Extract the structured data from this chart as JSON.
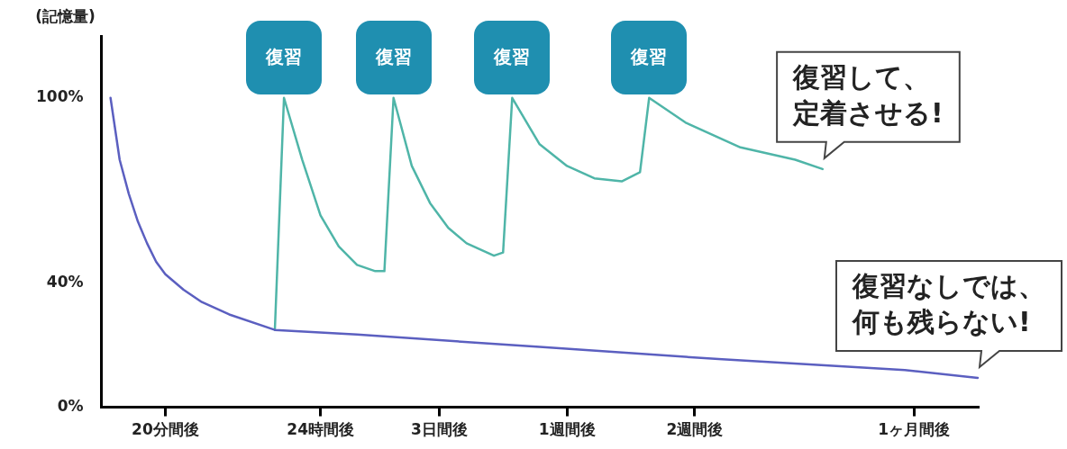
{
  "chart_data": {
    "type": "line",
    "ylabel": "(記憶量)",
    "ylim": [
      0,
      120
    ],
    "categories": [
      null,
      null,
      null,
      null,
      null,
      null,
      null,
      "20分間後",
      null,
      null,
      null,
      null,
      null,
      null,
      null,
      null,
      null,
      null,
      null,
      null,
      null,
      null,
      null,
      null,
      "24時間後",
      null,
      null,
      null,
      null,
      null,
      null,
      null,
      null,
      null,
      null,
      null,
      null,
      "3日間後",
      null,
      null,
      null,
      null,
      null,
      null,
      null,
      null,
      null,
      null,
      null,
      null,
      null,
      "1週間後",
      null,
      null,
      null,
      null,
      null,
      null,
      null,
      null,
      null,
      null,
      null,
      null,
      null,
      "2週間後",
      null,
      null,
      null,
      null,
      null,
      null,
      null,
      null,
      null,
      null,
      null,
      null,
      null,
      null,
      null,
      null,
      null,
      null,
      null,
      null,
      null,
      null,
      null,
      "1ヶ月間後",
      null,
      null,
      null,
      null,
      null,
      null,
      null
    ],
    "yticks": [
      {
        "value": 0,
        "label": "0%"
      },
      {
        "value": 40,
        "label": "40%"
      },
      {
        "value": 100,
        "label": "100%"
      }
    ],
    "series": [
      {
        "color": "#5b5fc0",
        "values": [
          null,
          100,
          80,
          69,
          60,
          53,
          47,
          43,
          null,
          38,
          null,
          34,
          null,
          null,
          30,
          null,
          null,
          null,
          null,
          25,
          null,
          null,
          null,
          null,
          null,
          null,
          null,
          null,
          23.5,
          null,
          null,
          null,
          null,
          null,
          null,
          null,
          null,
          null,
          null,
          null,
          null,
          null,
          null,
          null,
          null,
          null,
          null,
          null,
          19.5,
          null,
          null,
          null,
          null,
          null,
          null,
          null,
          null,
          null,
          null,
          null,
          null,
          null,
          null,
          null,
          null,
          null,
          null,
          null,
          15.5,
          null,
          null,
          null,
          null,
          null,
          null,
          null,
          null,
          null,
          null,
          null,
          null,
          null,
          null,
          null,
          null,
          null,
          null,
          null,
          12,
          null,
          null,
          null,
          null,
          null,
          null,
          null,
          9.5
        ]
      },
      {
        "color": "#4fb5a8",
        "values": [
          null,
          null,
          null,
          null,
          null,
          null,
          null,
          null,
          null,
          null,
          null,
          null,
          null,
          null,
          null,
          null,
          null,
          null,
          null,
          25,
          100,
          null,
          80,
          null,
          62,
          null,
          52,
          null,
          46,
          null,
          44,
          44,
          100,
          null,
          78,
          null,
          66,
          null,
          58,
          null,
          53,
          null,
          null,
          49,
          50,
          100,
          null,
          null,
          85,
          null,
          null,
          78,
          null,
          null,
          74,
          null,
          null,
          73,
          null,
          76,
          100,
          null,
          null,
          null,
          92,
          null,
          null,
          null,
          null,
          null,
          84,
          null,
          null,
          null,
          null,
          null,
          80,
          null,
          null,
          77,
          null,
          null,
          null,
          null,
          null,
          null,
          null,
          null,
          null,
          null,
          null,
          null,
          null,
          null,
          null,
          null,
          null
        ]
      }
    ],
    "annotations": [
      "復習",
      "復習",
      "復習",
      "復習",
      "復習して、定着させる!",
      "復習なしでは、何も残らない!"
    ],
    "legend": false,
    "grid": false,
    "marker": "none",
    "line_style": "solid"
  }
}
